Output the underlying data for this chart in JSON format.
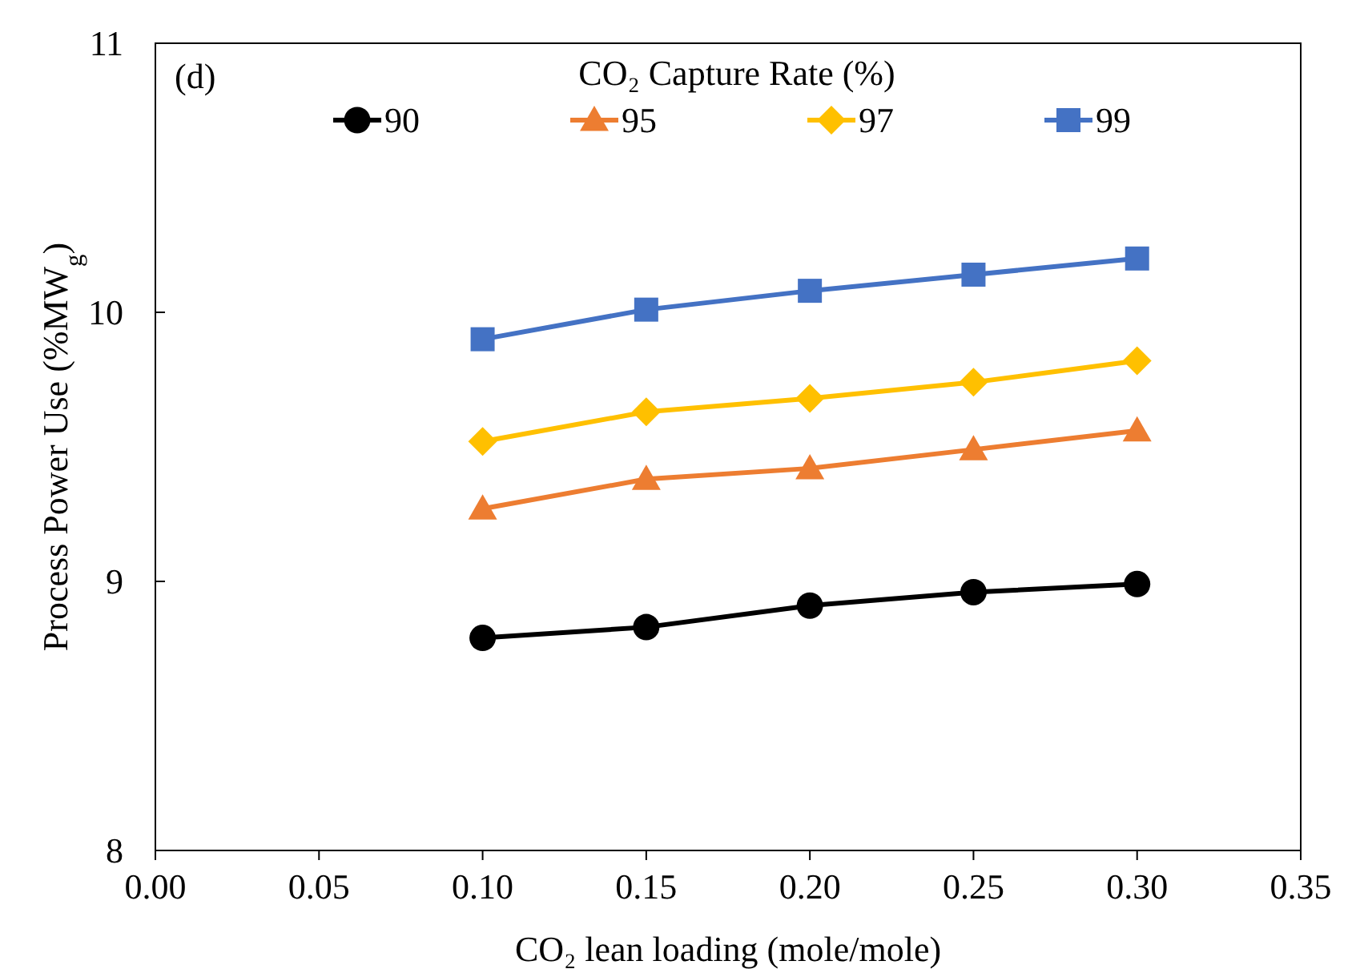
{
  "chart_data": {
    "type": "line",
    "xlabel": "CO₂ lean loading (mole/mole)",
    "ylabel": "Process Power Use (%MW$_{g}$)",
    "legend_title": "CO₂ Capture Rate (%)",
    "legend": "top",
    "grid": false,
    "annotations": [
      "(d)"
    ],
    "xlim": [
      0,
      0.35
    ],
    "xticks": [
      {
        "value": 0,
        "label": "0.00"
      },
      {
        "value": 0.05,
        "label": "0.05"
      },
      {
        "value": 0.1,
        "label": "0.10"
      },
      {
        "value": 0.15,
        "label": "0.15"
      },
      {
        "value": 0.2,
        "label": "0.20"
      },
      {
        "value": 0.25,
        "label": "0.25"
      },
      {
        "value": 0.3,
        "label": "0.30"
      },
      {
        "value": 0.35,
        "label": "0.35"
      }
    ],
    "ylim": [
      8,
      11
    ],
    "yticks": [
      8,
      9,
      10,
      11
    ],
    "x": [
      0.1,
      0.15,
      0.2,
      0.25,
      0.3
    ],
    "line_style": "solid",
    "series": [
      {
        "name": "90",
        "color": "#000000",
        "marker": "circle",
        "values": [
          8.79,
          8.83,
          8.91,
          8.96,
          8.99
        ]
      },
      {
        "name": "95",
        "color": "#ed7d31",
        "marker": "triangle",
        "values": [
          9.27,
          9.38,
          9.42,
          9.49,
          9.56
        ]
      },
      {
        "name": "97",
        "color": "#ffc000",
        "marker": "diamond",
        "values": [
          9.52,
          9.63,
          9.68,
          9.74,
          9.82
        ]
      },
      {
        "name": "99",
        "color": "#4472c4",
        "marker": "square",
        "values": [
          9.9,
          10.01,
          10.08,
          10.14,
          10.2
        ]
      }
    ]
  }
}
